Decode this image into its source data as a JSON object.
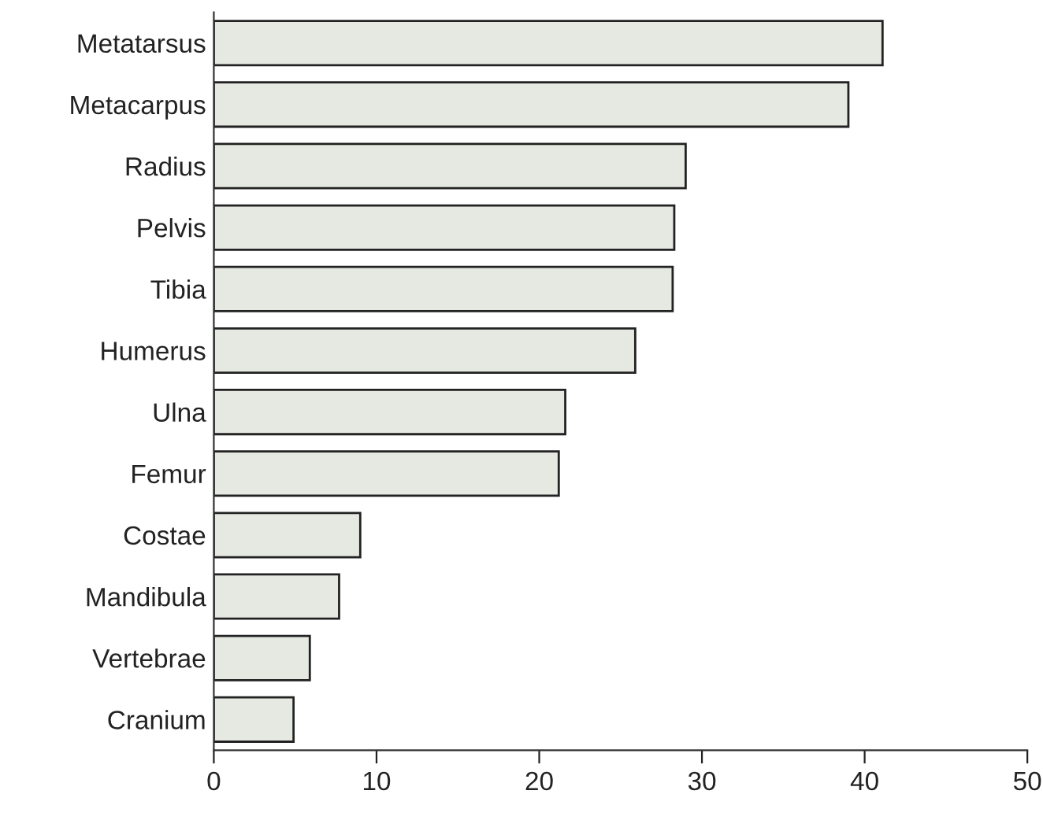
{
  "chart_data": {
    "type": "bar",
    "orientation": "horizontal",
    "categories": [
      "Metatarsus",
      "Metacarpus",
      "Radius",
      "Pelvis",
      "Tibia",
      "Humerus",
      "Ulna",
      "Femur",
      "Costae",
      "Mandibula",
      "Vertebrae",
      "Cranium"
    ],
    "values": [
      41.1,
      39.0,
      29.0,
      28.3,
      28.2,
      25.9,
      21.6,
      21.2,
      9.0,
      7.7,
      5.9,
      4.9
    ],
    "color": "#e6e8e2",
    "xlim": [
      0,
      50
    ],
    "xticks": [
      0,
      10,
      20,
      30,
      40,
      50
    ],
    "grid": false
  }
}
